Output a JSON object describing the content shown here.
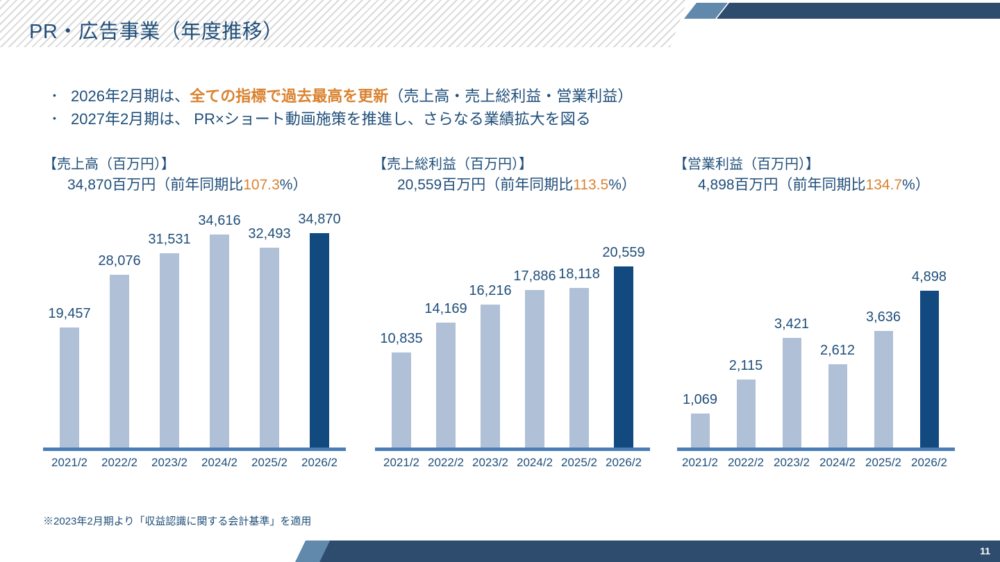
{
  "page": {
    "title": "PR・広告事業（年度推移）",
    "page_number": "11",
    "footnote": "※2023年2月期より「収益認識に関する会計基準」を適用"
  },
  "bullets": [
    {
      "prefix": "2026年2月期は、",
      "highlight": "全ての指標で過去最高を更新",
      "suffix": "（売上高・売上総利益・営業利益）"
    },
    {
      "prefix": "2027年2月期は、 PR×ショート動画施策を推進し、さらなる業績拡大を図る",
      "highlight": "",
      "suffix": ""
    }
  ],
  "colors": {
    "text_navy": "#1F4E79",
    "accent_orange": "#D9822F",
    "bar_light": "#AFC0D7",
    "bar_dark": "#12497F",
    "axis_blue": "#4A7CB5",
    "decor_navy": "#2E4D6E",
    "decor_blue": "#6089AB",
    "stripe_gray": "#D9D9D9"
  },
  "chart_data": [
    {
      "type": "bar",
      "title": "【売上高（百万円）】",
      "subtitle_prefix": "34,870百万円（前年同期比",
      "subtitle_pct": "107.3",
      "subtitle_suffix": "%）",
      "categories": [
        "2021/2",
        "2022/2",
        "2023/2",
        "2024/2",
        "2025/2",
        "2026/2"
      ],
      "values": [
        19457,
        28076,
        31531,
        34616,
        32493,
        34870
      ],
      "labels": [
        "19,457",
        "28,076",
        "31,531",
        "34,616",
        "32,493",
        "34,870"
      ],
      "ylim": [
        0,
        40000
      ],
      "highlight_index": 5,
      "grid": false,
      "legend": false
    },
    {
      "type": "bar",
      "title": "【売上総利益（百万円）】",
      "subtitle_prefix": "20,559百万円（前年同期比",
      "subtitle_pct": "113.5",
      "subtitle_suffix": "%）",
      "categories": [
        "2021/2",
        "2022/2",
        "2023/2",
        "2024/2",
        "2025/2",
        "2026/2"
      ],
      "values": [
        10835,
        14169,
        16216,
        17886,
        18118,
        20559
      ],
      "labels": [
        "10,835",
        "14,169",
        "16,216",
        "17,886",
        "18,118",
        "20,559"
      ],
      "ylim": [
        0,
        28000
      ],
      "highlight_index": 5,
      "grid": false,
      "legend": false
    },
    {
      "type": "bar",
      "title": "【営業利益（百万円）】",
      "subtitle_prefix": "4,898百万円（前年同期比",
      "subtitle_pct": "134.7",
      "subtitle_suffix": "%）",
      "categories": [
        "2021/2",
        "2022/2",
        "2023/2",
        "2024/2",
        "2025/2",
        "2026/2"
      ],
      "values": [
        1069,
        2115,
        3421,
        2612,
        3636,
        4898
      ],
      "labels": [
        "1,069",
        "2,115",
        "3,421",
        "2,612",
        "3,636",
        "4,898"
      ],
      "ylim": [
        0,
        7700
      ],
      "highlight_index": 5,
      "grid": false,
      "legend": false
    }
  ]
}
